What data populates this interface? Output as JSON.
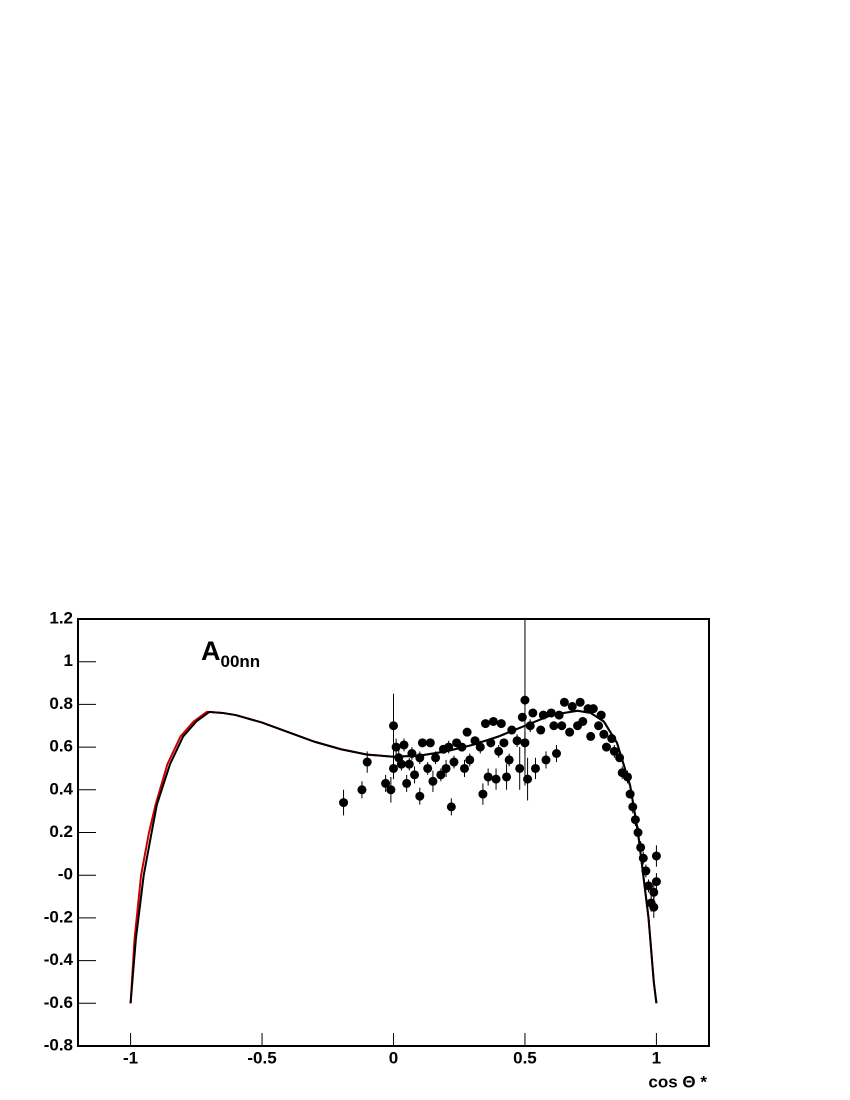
{
  "chart_data": {
    "type": "scatter",
    "annotation": {
      "text": "A",
      "subscript": "00nn"
    },
    "x_label": "cos Θ *",
    "xlim": [
      -1.2,
      1.2
    ],
    "ylim": [
      -0.8,
      1.2
    ],
    "xticks": [
      -1,
      -0.5,
      0,
      0.5,
      1
    ],
    "yticks": [
      1.2,
      1,
      0.8,
      0.6,
      0.4,
      0.2,
      {
        "value": 0,
        "label": "-0"
      },
      -0.2,
      -0.4,
      -0.6,
      -0.8
    ],
    "points": {
      "color": "#000000",
      "x": [
        -0.19,
        -0.12,
        -0.1,
        -0.03,
        -0.01,
        0,
        0,
        0.01,
        0.02,
        0.03,
        0.04,
        0.05,
        0.06,
        0.07,
        0.08,
        0.1,
        0.1,
        0.11,
        0.13,
        0.14,
        0.15,
        0.16,
        0.18,
        0.19,
        0.2,
        0.21,
        0.22,
        0.23,
        0.24,
        0.26,
        0.27,
        0.28,
        0.29,
        0.31,
        0.33,
        0.34,
        0.35,
        0.36,
        0.37,
        0.38,
        0.39,
        0.4,
        0.41,
        0.42,
        0.43,
        0.44,
        0.45,
        0.47,
        0.48,
        0.49,
        0.5,
        0.5,
        0.51,
        0.52,
        0.53,
        0.54,
        0.56,
        0.57,
        0.58,
        0.6,
        0.61,
        0.62,
        0.63,
        0.64,
        0.65,
        0.67,
        0.68,
        0.7,
        0.71,
        0.72,
        0.74,
        0.75,
        0.76,
        0.78,
        0.79,
        0.8,
        0.81,
        0.83,
        0.84,
        0.86,
        0.87,
        0.89,
        0.9,
        0.91,
        0.92,
        0.93,
        0.94,
        0.95,
        0.96,
        0.97,
        0.98,
        0.99,
        0.99,
        1.0,
        1.0
      ],
      "values": [
        0.34,
        0.4,
        0.53,
        0.43,
        0.4,
        0.7,
        0.5,
        0.6,
        0.55,
        0.52,
        0.61,
        0.43,
        0.52,
        0.57,
        0.47,
        0.37,
        0.55,
        0.62,
        0.5,
        0.62,
        0.44,
        0.55,
        0.47,
        0.59,
        0.5,
        0.6,
        0.32,
        0.53,
        0.62,
        0.6,
        0.5,
        0.67,
        0.54,
        0.63,
        0.6,
        0.38,
        0.71,
        0.46,
        0.62,
        0.72,
        0.45,
        0.58,
        0.71,
        0.62,
        0.46,
        0.54,
        0.68,
        0.63,
        0.5,
        0.74,
        0.82,
        0.62,
        0.45,
        0.7,
        0.76,
        0.5,
        0.68,
        0.75,
        0.54,
        0.76,
        0.7,
        0.57,
        0.75,
        0.7,
        0.81,
        0.67,
        0.79,
        0.7,
        0.81,
        0.72,
        0.78,
        0.65,
        0.78,
        0.7,
        0.75,
        0.66,
        0.6,
        0.64,
        0.58,
        0.55,
        0.48,
        0.46,
        0.38,
        0.32,
        0.26,
        0.2,
        0.13,
        0.08,
        0.02,
        -0.05,
        -0.13,
        -0.08,
        -0.15,
        0.09,
        -0.03
      ],
      "errors": [
        0.06,
        0.04,
        0.05,
        0.04,
        0.06,
        0.15,
        0.05,
        0.04,
        0.04,
        0.03,
        0.03,
        0.04,
        0.03,
        0.03,
        0.04,
        0.04,
        0.03,
        0.02,
        0.03,
        0.02,
        0.05,
        0.03,
        0.03,
        0.02,
        0.04,
        0.03,
        0.04,
        0.03,
        0.02,
        0.02,
        0.04,
        0.02,
        0.03,
        0.02,
        0.03,
        0.05,
        0.02,
        0.04,
        0.02,
        0.02,
        0.05,
        0.03,
        0.02,
        0.02,
        0.06,
        0.03,
        0.02,
        0.03,
        0.1,
        0.02,
        0.4,
        0.05,
        0.1,
        0.03,
        0.02,
        0.05,
        0.02,
        0.02,
        0.04,
        0.02,
        0.02,
        0.04,
        0.02,
        0.02,
        0.02,
        0.02,
        0.02,
        0.02,
        0.02,
        0.02,
        0.02,
        0.02,
        0.02,
        0.02,
        0.02,
        0.02,
        0.02,
        0.02,
        0.03,
        0.02,
        0.03,
        0.03,
        0.02,
        0.03,
        0.03,
        0.03,
        0.03,
        0.03,
        0.03,
        0.03,
        0.04,
        0.04,
        0.05,
        0.05,
        0.04
      ]
    },
    "curves": [
      {
        "color": "#cc0000",
        "x": [
          -1,
          -0.985,
          -0.96,
          -0.93,
          -0.905,
          -0.86,
          -0.81,
          -0.76,
          -0.71,
          -0.65,
          -0.6,
          -0.5,
          -0.4,
          -0.3,
          -0.2,
          -0.1,
          0,
          0.1,
          0.2,
          0.3,
          0.4,
          0.5,
          0.6,
          0.7,
          0.75,
          0.8,
          0.85,
          0.9,
          0.93,
          0.95,
          0.97,
          0.99,
          1
        ],
        "values": [
          -0.6,
          -0.3,
          0,
          0.2,
          0.33,
          0.52,
          0.65,
          0.72,
          0.765,
          0.76,
          0.75,
          0.715,
          0.67,
          0.625,
          0.59,
          0.565,
          0.555,
          0.56,
          0.58,
          0.61,
          0.65,
          0.7,
          0.75,
          0.77,
          0.76,
          0.72,
          0.62,
          0.42,
          0.2,
          0,
          -0.2,
          -0.5,
          -0.6
        ]
      },
      {
        "color": "#000000",
        "x": [
          -1,
          -0.98,
          -0.95,
          -0.92,
          -0.9,
          -0.85,
          -0.8,
          -0.75,
          -0.7,
          -0.65,
          -0.6,
          -0.5,
          -0.4,
          -0.3,
          -0.2,
          -0.1,
          0,
          0.1,
          0.2,
          0.3,
          0.4,
          0.5,
          0.6,
          0.7,
          0.75,
          0.8,
          0.85,
          0.9,
          0.93,
          0.95,
          0.97,
          0.99,
          1
        ],
        "values": [
          -0.6,
          -0.3,
          0,
          0.2,
          0.33,
          0.52,
          0.65,
          0.72,
          0.765,
          0.76,
          0.75,
          0.715,
          0.67,
          0.625,
          0.59,
          0.565,
          0.555,
          0.56,
          0.58,
          0.61,
          0.65,
          0.7,
          0.75,
          0.77,
          0.76,
          0.72,
          0.62,
          0.42,
          0.2,
          0,
          -0.2,
          -0.5,
          -0.6
        ]
      }
    ]
  }
}
